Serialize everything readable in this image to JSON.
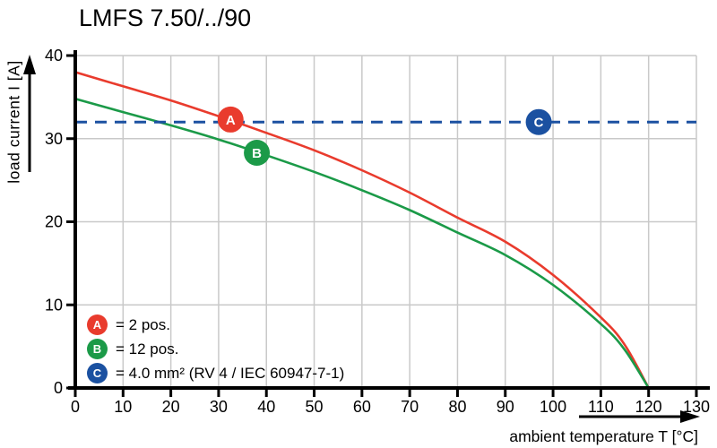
{
  "title": "LMFS 7.50/../90",
  "chart_data": {
    "type": "line",
    "title": "LMFS 7.50/../90",
    "xlabel": "ambient temperature T [°C]",
    "ylabel": "load current I [A]",
    "xlim": [
      0,
      130
    ],
    "ylim": [
      0,
      40
    ],
    "x_ticks": [
      0,
      10,
      20,
      30,
      40,
      50,
      60,
      70,
      80,
      90,
      100,
      110,
      120,
      130
    ],
    "y_ticks": [
      0,
      10,
      20,
      30,
      40
    ],
    "grid": true,
    "grid_color": "#c9c9c9",
    "axis_color": "#000000",
    "legend_position": "lower-left",
    "x": [
      0,
      10,
      20,
      30,
      40,
      50,
      60,
      70,
      80,
      90,
      100,
      110,
      115,
      120
    ],
    "series": [
      {
        "name": "A",
        "legend_label": "= 2 pos.",
        "color": "#e93b2d",
        "style": "solid",
        "values": [
          38.0,
          36.3,
          34.6,
          32.7,
          30.7,
          28.6,
          26.2,
          23.5,
          20.5,
          17.6,
          13.6,
          8.5,
          5.2,
          0
        ],
        "marker": {
          "letter": "A",
          "x": 32.5,
          "y": 32.3
        }
      },
      {
        "name": "B",
        "legend_label": "= 12 pos.",
        "color": "#1b9a48",
        "style": "solid",
        "values": [
          34.8,
          33.2,
          31.6,
          29.9,
          28.0,
          26.0,
          23.8,
          21.4,
          18.7,
          16.0,
          12.4,
          7.7,
          4.6,
          0
        ],
        "marker": {
          "letter": "B",
          "x": 38,
          "y": 28.3
        }
      },
      {
        "name": "C",
        "legend_label": "= 4.0 mm² (RV 4 / IEC 60947-7-1)",
        "color": "#1b51a1",
        "style": "dashed",
        "constant_value": 32,
        "marker": {
          "letter": "C",
          "x": 97,
          "y": 32
        }
      }
    ]
  }
}
